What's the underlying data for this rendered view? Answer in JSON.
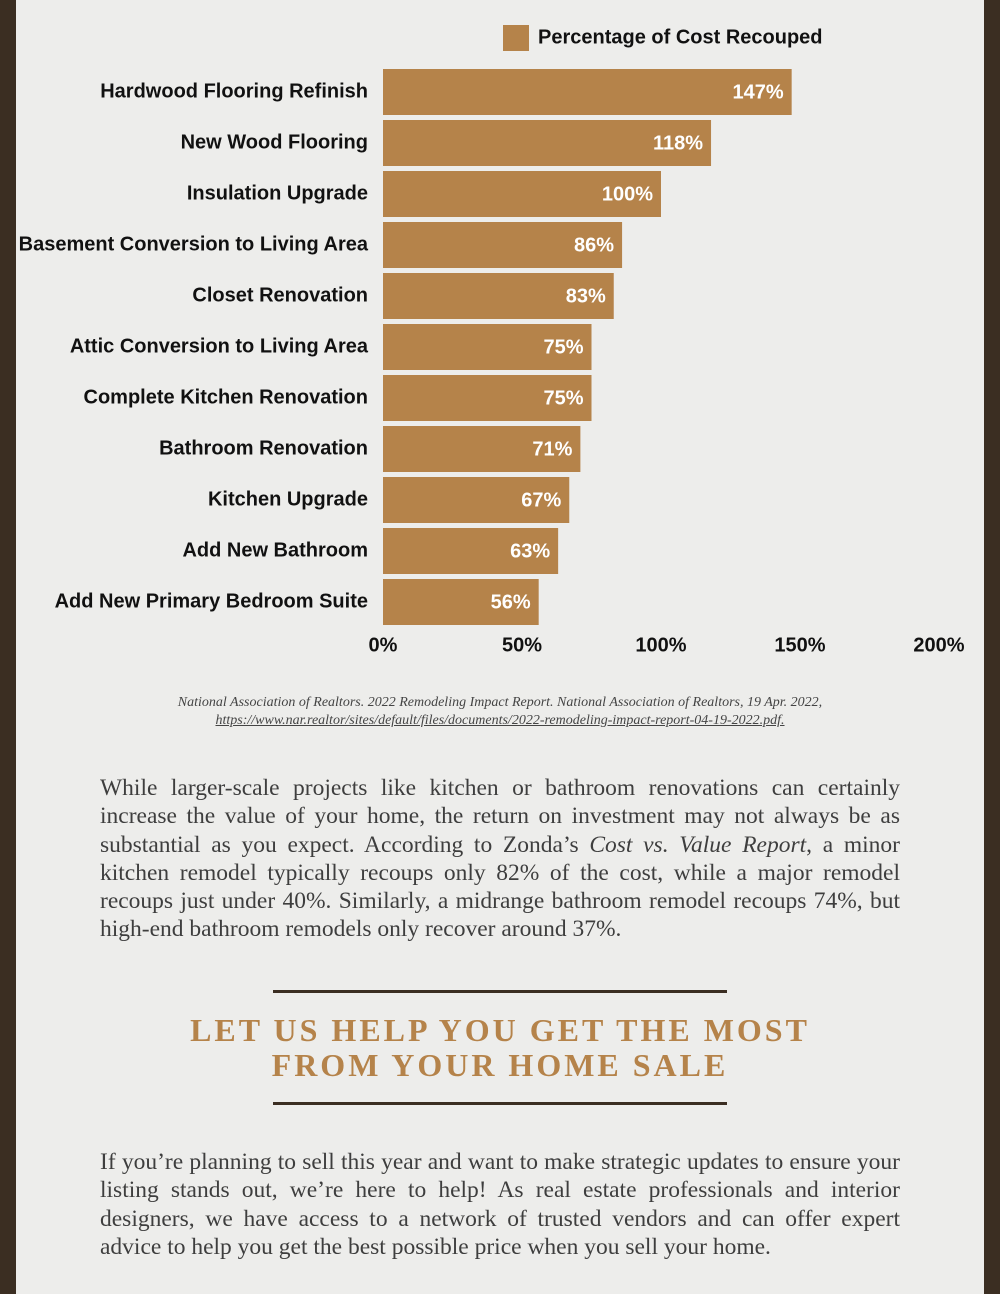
{
  "chart_data": {
    "type": "bar",
    "orientation": "horizontal",
    "legend": "top",
    "categories": [
      "Hardwood Flooring Refinish",
      "New Wood Flooring",
      "Insulation Upgrade",
      "Basement Conversion to Living Area",
      "Closet Renovation",
      "Attic Conversion to Living Area",
      "Complete Kitchen Renovation",
      "Bathroom Renovation",
      "Kitchen Upgrade",
      "Add New Bathroom",
      "Add New Primary Bedroom Suite"
    ],
    "series": [
      {
        "name": "Percentage of Cost Recouped",
        "color": "#b5834a",
        "values": [
          147,
          118,
          100,
          86,
          83,
          75,
          75,
          71,
          67,
          63,
          56
        ],
        "value_labels": [
          "147%",
          "118%",
          "100%",
          "86%",
          "83%",
          "75%",
          "75%",
          "71%",
          "67%",
          "63%",
          "56%"
        ]
      }
    ],
    "xlim": [
      0,
      200
    ],
    "xticks": [
      {
        "value": 0,
        "label": "0%"
      },
      {
        "value": 50,
        "label": "50%"
      },
      {
        "value": 100,
        "label": "100%"
      },
      {
        "value": 150,
        "label": "150%"
      },
      {
        "value": 200,
        "label": "200%"
      }
    ]
  },
  "citation": {
    "text": "National Association of Realtors. 2022 Remodeling Impact Report. National Association of Realtors, 19 Apr. 2022,",
    "link": "https://www.nar.realtor/sites/default/files/documents/2022-remodeling-impact-report-04-19-2022.pdf."
  },
  "paragraph_1": [
    "While larger-scale projects like kitchen or bathroom renovations can certainly increase the value of your home, the return on investment may not always be as substantial as you expect. According to Zonda’s ",
    "Cost vs. Value Report",
    ", a minor kitchen remodel typically recoups only 82% of the cost, while a major remodel recoups just under 40%. Similarly, a midrange bathroom remodel recoups 74%, but high-end bathroom remodels only recover around 37%."
  ],
  "heading": [
    "LET US HELP YOU GET THE MOST",
    "FROM YOUR HOME SALE"
  ],
  "paragraph_2": "If you’re planning to sell this year and want to make strategic updates to ensure your listing stands out, we’re here to help! As real estate professionals and interior designers, we have access to a network of trusted vendors and can offer expert advice to help you get the best possible price when you sell your home."
}
